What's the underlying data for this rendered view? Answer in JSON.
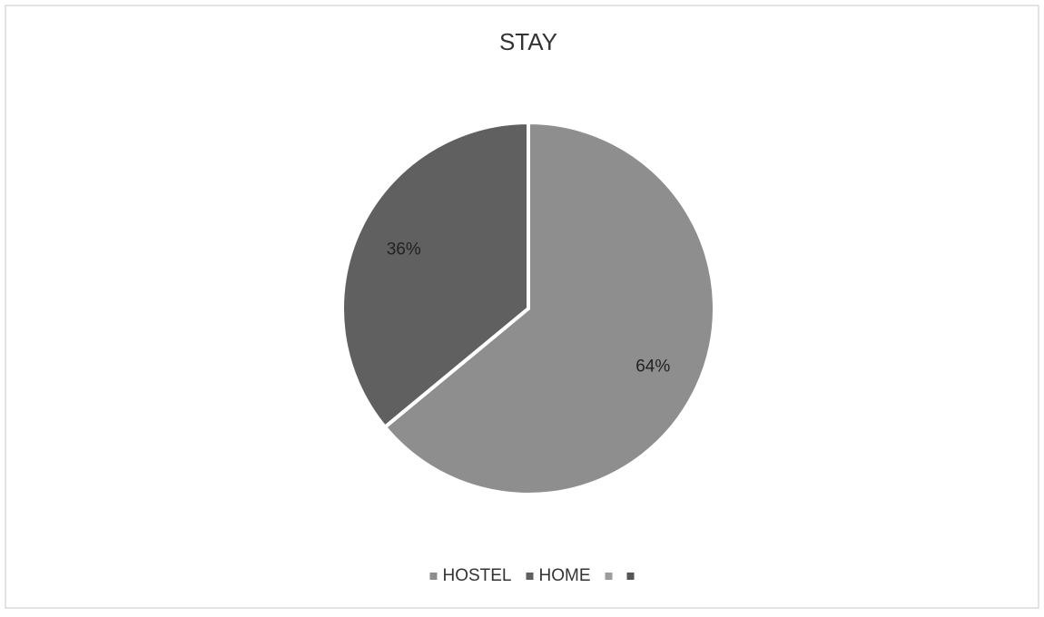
{
  "chart_data": {
    "type": "pie",
    "title": "STAY",
    "categories": [
      "HOSTEL",
      "HOME",
      null,
      null
    ],
    "values": [
      64,
      36,
      0,
      0
    ],
    "value_labels": [
      "64%",
      "36%",
      null,
      null
    ],
    "colors": [
      "#8e8e8e",
      "#606060",
      "#9c9c9c",
      "#555555"
    ],
    "legend": "bottom"
  }
}
